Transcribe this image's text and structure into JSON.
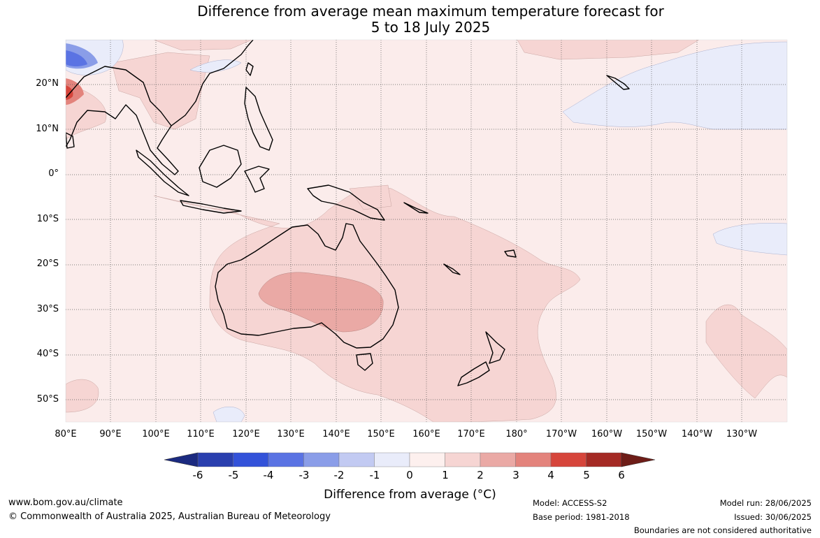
{
  "title_line1": "Difference from average mean maximum temperature forecast for",
  "title_line2": "5 to 18 July 2025",
  "map": {
    "lat_labels": [
      "20°N",
      "10°N",
      "0°",
      "10°S",
      "20°S",
      "30°S",
      "40°S",
      "50°S"
    ],
    "lon_labels": [
      "80°E",
      "90°E",
      "100°E",
      "110°E",
      "120°E",
      "130°E",
      "140°E",
      "150°E",
      "160°E",
      "170°E",
      "180°",
      "170°W",
      "160°W",
      "150°W",
      "140°W",
      "130°W"
    ],
    "background_anomaly_color": "#fbeceb"
  },
  "colorbar": {
    "label": "Difference from average (°C)",
    "ticks": [
      "-6",
      "-5",
      "-4",
      "-3",
      "-2",
      "-1",
      "0",
      "1",
      "2",
      "3",
      "4",
      "5",
      "6"
    ],
    "colors": [
      "#1b2a80",
      "#2a3fae",
      "#3352d9",
      "#5a73e3",
      "#8a9de8",
      "#c2caf2",
      "#e9ecfa",
      "#fdf0ee",
      "#f6d5d3",
      "#eaa9a5",
      "#e3837c",
      "#d6453b",
      "#a42a24",
      "#6e1d18"
    ]
  },
  "footer": {
    "url": "www.bom.gov.au/climate",
    "copyright": "© Commonwealth of Australia 2025, Australian Bureau of Meteorology",
    "model": "Model: ACCESS-S2",
    "base_period": "Base period: 1981-2018",
    "model_run": "Model run: 28/06/2025",
    "issued": "Issued: 30/06/2025",
    "disclaimer": "Boundaries are not considered authoritative"
  }
}
